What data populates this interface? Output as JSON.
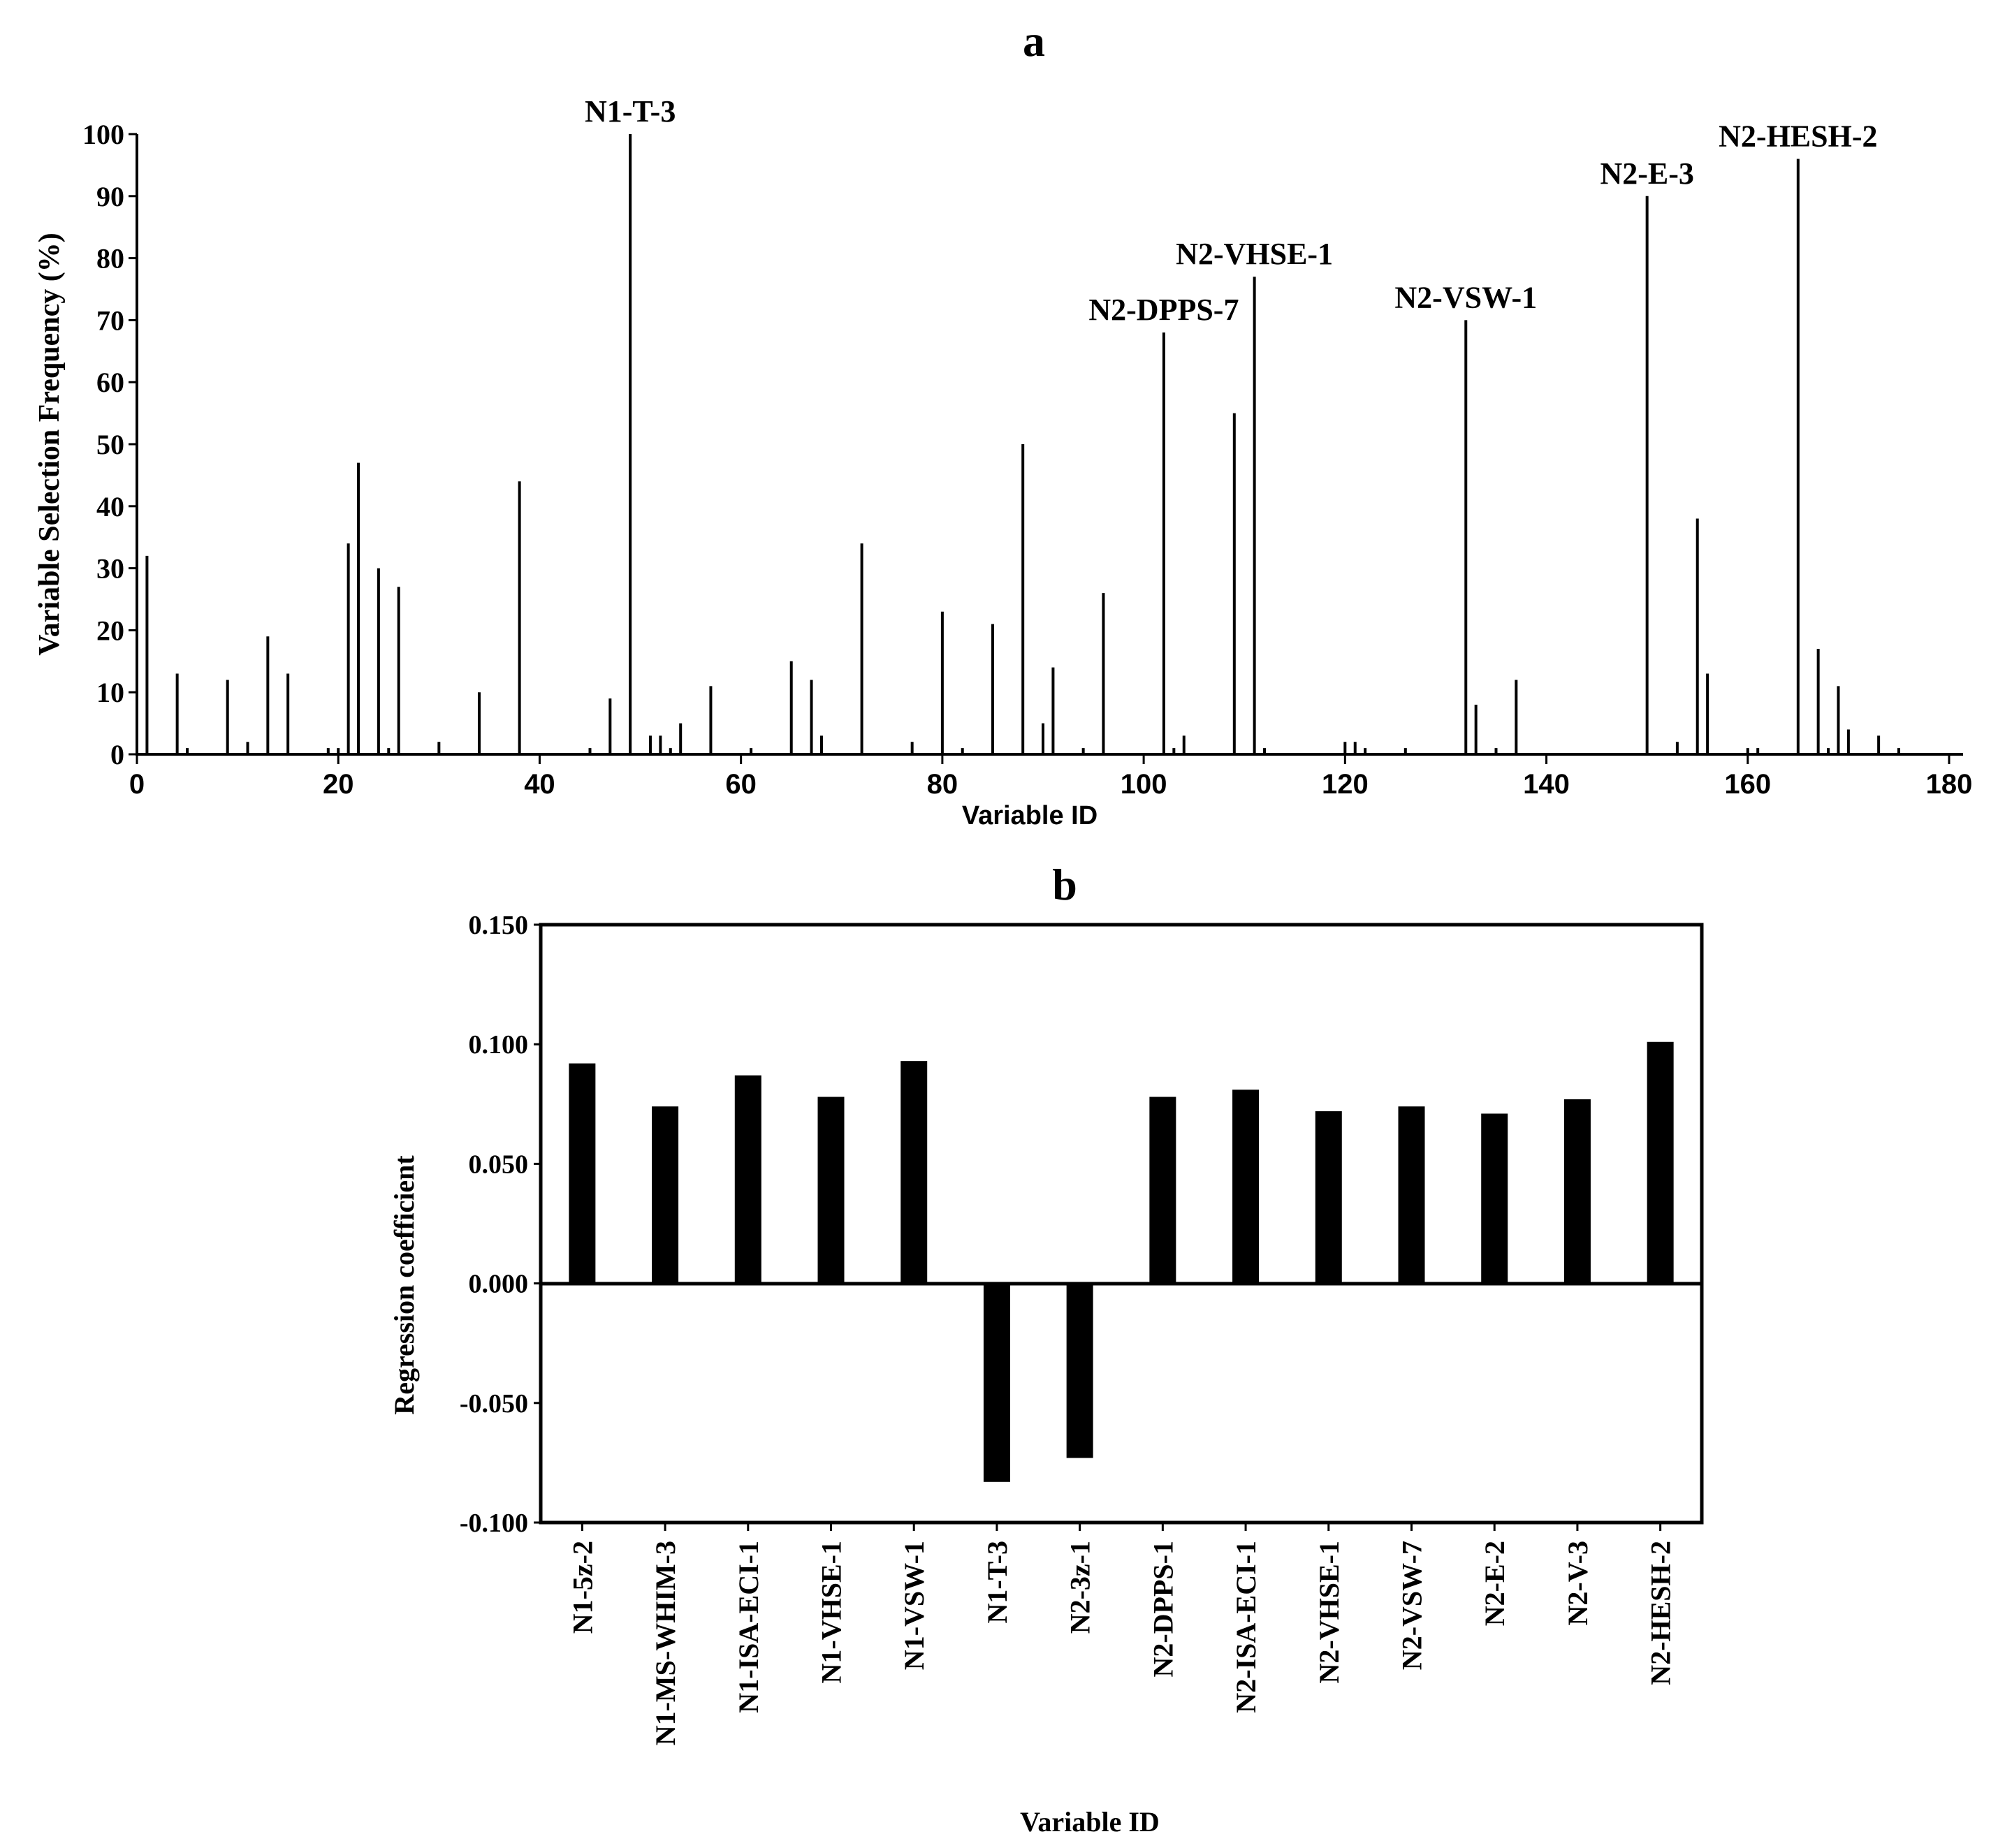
{
  "chart_data": [
    {
      "panel_label": "a",
      "type": "bar",
      "xlabel": "Variable ID",
      "ylabel": "Variable Selection Frequency (%)",
      "xlim": [
        0,
        180
      ],
      "ylim": [
        0,
        100
      ],
      "x_ticks": [
        0,
        20,
        40,
        60,
        80,
        100,
        120,
        140,
        160,
        180
      ],
      "y_ticks": [
        0,
        10,
        20,
        30,
        40,
        50,
        60,
        70,
        80,
        90,
        100
      ],
      "points": [
        {
          "x": 1,
          "y": 32
        },
        {
          "x": 4,
          "y": 13
        },
        {
          "x": 5,
          "y": 1
        },
        {
          "x": 9,
          "y": 12
        },
        {
          "x": 11,
          "y": 2
        },
        {
          "x": 13,
          "y": 19
        },
        {
          "x": 15,
          "y": 13
        },
        {
          "x": 19,
          "y": 1
        },
        {
          "x": 20,
          "y": 1
        },
        {
          "x": 21,
          "y": 34
        },
        {
          "x": 22,
          "y": 47
        },
        {
          "x": 24,
          "y": 30
        },
        {
          "x": 25,
          "y": 1
        },
        {
          "x": 26,
          "y": 27
        },
        {
          "x": 30,
          "y": 2
        },
        {
          "x": 34,
          "y": 10
        },
        {
          "x": 38,
          "y": 44
        },
        {
          "x": 45,
          "y": 1
        },
        {
          "x": 47,
          "y": 9
        },
        {
          "x": 49,
          "y": 100
        },
        {
          "x": 51,
          "y": 3
        },
        {
          "x": 52,
          "y": 3
        },
        {
          "x": 53,
          "y": 1
        },
        {
          "x": 54,
          "y": 5
        },
        {
          "x": 57,
          "y": 11
        },
        {
          "x": 61,
          "y": 1
        },
        {
          "x": 65,
          "y": 15
        },
        {
          "x": 67,
          "y": 12
        },
        {
          "x": 68,
          "y": 3
        },
        {
          "x": 72,
          "y": 34
        },
        {
          "x": 77,
          "y": 2
        },
        {
          "x": 80,
          "y": 23
        },
        {
          "x": 82,
          "y": 1
        },
        {
          "x": 85,
          "y": 21
        },
        {
          "x": 88,
          "y": 50
        },
        {
          "x": 90,
          "y": 5
        },
        {
          "x": 91,
          "y": 14
        },
        {
          "x": 94,
          "y": 1
        },
        {
          "x": 96,
          "y": 26
        },
        {
          "x": 102,
          "y": 68
        },
        {
          "x": 103,
          "y": 1
        },
        {
          "x": 104,
          "y": 3
        },
        {
          "x": 109,
          "y": 55
        },
        {
          "x": 111,
          "y": 77
        },
        {
          "x": 112,
          "y": 1
        },
        {
          "x": 120,
          "y": 2
        },
        {
          "x": 121,
          "y": 2
        },
        {
          "x": 122,
          "y": 1
        },
        {
          "x": 126,
          "y": 1
        },
        {
          "x": 132,
          "y": 70
        },
        {
          "x": 133,
          "y": 8
        },
        {
          "x": 135,
          "y": 1
        },
        {
          "x": 137,
          "y": 12
        },
        {
          "x": 150,
          "y": 90
        },
        {
          "x": 153,
          "y": 2
        },
        {
          "x": 155,
          "y": 38
        },
        {
          "x": 156,
          "y": 13
        },
        {
          "x": 160,
          "y": 1
        },
        {
          "x": 161,
          "y": 1
        },
        {
          "x": 165,
          "y": 96
        },
        {
          "x": 167,
          "y": 17
        },
        {
          "x": 168,
          "y": 1
        },
        {
          "x": 169,
          "y": 11
        },
        {
          "x": 170,
          "y": 4
        },
        {
          "x": 173,
          "y": 3
        },
        {
          "x": 175,
          "y": 1
        }
      ],
      "annotations": [
        {
          "text": "N1-T-3",
          "x": 49,
          "y": 100
        },
        {
          "text": "N2-DPPS-7",
          "x": 102,
          "y": 68
        },
        {
          "text": "N2-VHSE-1",
          "x": 111,
          "y": 77
        },
        {
          "text": "N2-VSW-1",
          "x": 132,
          "y": 70
        },
        {
          "text": "N2-E-3",
          "x": 150,
          "y": 90
        },
        {
          "text": "N2-HESH-2",
          "x": 165,
          "y": 96
        }
      ]
    },
    {
      "panel_label": "b",
      "type": "bar",
      "xlabel": "Variable ID",
      "ylabel": "Regression coefficient",
      "ylim": [
        -0.1,
        0.15
      ],
      "y_ticks": [
        "-0.100",
        "-0.050",
        "0.000",
        "0.050",
        "0.100",
        "0.150"
      ],
      "categories": [
        "N1-5z-2",
        "N1-MS-WHIM-3",
        "N1-ISA-ECI-1",
        "N1-VHSE-1",
        "N1-VSW-1",
        "N1-T-3",
        "N2-3z-1",
        "N2-DPPS-1",
        "N2-ISA-ECI-1",
        "N2-VHSE-1",
        "N2-VSW-7",
        "N2-E-2",
        "N2-V-3",
        "N2-HESH-2"
      ],
      "values": [
        0.092,
        0.074,
        0.087,
        0.078,
        0.093,
        -0.083,
        -0.073,
        0.078,
        0.081,
        0.072,
        0.074,
        0.071,
        0.077,
        0.101
      ]
    }
  ]
}
